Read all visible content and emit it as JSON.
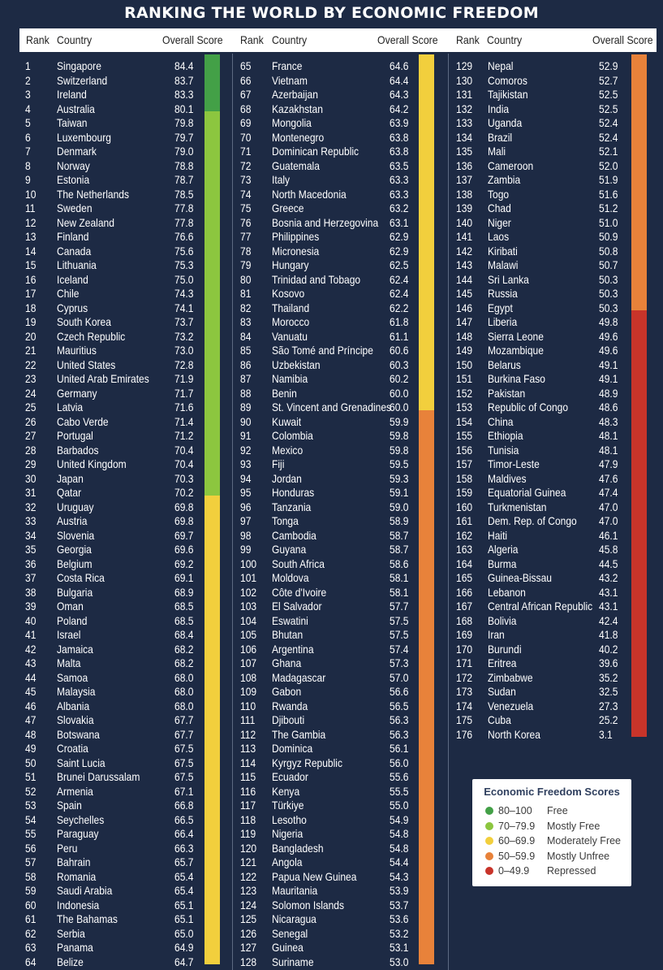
{
  "title": "RANKING THE WORLD BY ECONOMIC FREEDOM",
  "header": {
    "rank": "Rank",
    "country": "Country",
    "score": "Overall Score"
  },
  "colors": {
    "free": "#43a047",
    "mostly_free": "#8cc63f",
    "moderately_free": "#f2cf3d",
    "mostly_unfree": "#e8823a",
    "repressed": "#c8342a"
  },
  "legend": {
    "title": "Economic Freedom Scores",
    "items": [
      {
        "range": "80–100",
        "label": "Free",
        "color": "#43a047"
      },
      {
        "range": "70–79.9",
        "label": "Mostly Free",
        "color": "#8cc63f"
      },
      {
        "range": "60–69.9",
        "label": "Moderately Free",
        "color": "#f2cf3d"
      },
      {
        "range": "50–59.9",
        "label": "Mostly Unfree",
        "color": "#e8823a"
      },
      {
        "range": "0–49.9",
        "label": "Repressed",
        "color": "#c8342a"
      }
    ]
  },
  "chart_data": {
    "type": "table",
    "columns": [
      "Rank",
      "Country",
      "Overall Score"
    ],
    "rows": [
      [
        1,
        "Singapore",
        84.4
      ],
      [
        2,
        "Switzerland",
        83.7
      ],
      [
        3,
        "Ireland",
        83.3
      ],
      [
        4,
        "Australia",
        80.1
      ],
      [
        5,
        "Taiwan",
        79.8
      ],
      [
        6,
        "Luxembourg",
        79.7
      ],
      [
        7,
        "Denmark",
        79.0
      ],
      [
        8,
        "Norway",
        78.8
      ],
      [
        9,
        "Estonia",
        78.7
      ],
      [
        10,
        "The Netherlands",
        78.5
      ],
      [
        11,
        "Sweden",
        77.8
      ],
      [
        12,
        "New Zealand",
        77.8
      ],
      [
        13,
        "Finland",
        76.6
      ],
      [
        14,
        "Canada",
        75.6
      ],
      [
        15,
        "Lithuania",
        75.3
      ],
      [
        16,
        "Iceland",
        75.0
      ],
      [
        17,
        "Chile",
        74.3
      ],
      [
        18,
        "Cyprus",
        74.1
      ],
      [
        19,
        "South Korea",
        73.7
      ],
      [
        20,
        "Czech Republic",
        73.2
      ],
      [
        21,
        "Mauritius",
        73.0
      ],
      [
        22,
        "United States",
        72.8
      ],
      [
        23,
        "United Arab Emirates",
        71.9
      ],
      [
        24,
        "Germany",
        71.7
      ],
      [
        25,
        "Latvia",
        71.6
      ],
      [
        26,
        "Cabo Verde",
        71.4
      ],
      [
        27,
        "Portugal",
        71.2
      ],
      [
        28,
        "Barbados",
        70.4
      ],
      [
        29,
        "United Kingdom",
        70.4
      ],
      [
        30,
        "Japan",
        70.3
      ],
      [
        31,
        "Qatar",
        70.2
      ],
      [
        32,
        "Uruguay",
        69.8
      ],
      [
        33,
        "Austria",
        69.8
      ],
      [
        34,
        "Slovenia",
        69.7
      ],
      [
        35,
        "Georgia",
        69.6
      ],
      [
        36,
        "Belgium",
        69.2
      ],
      [
        37,
        "Costa Rica",
        69.1
      ],
      [
        38,
        "Bulgaria",
        68.9
      ],
      [
        39,
        "Oman",
        68.5
      ],
      [
        40,
        "Poland",
        68.5
      ],
      [
        41,
        "Israel",
        68.4
      ],
      [
        42,
        "Jamaica",
        68.2
      ],
      [
        43,
        "Malta",
        68.2
      ],
      [
        44,
        "Samoa",
        68.0
      ],
      [
        45,
        "Malaysia",
        68.0
      ],
      [
        46,
        "Albania",
        68.0
      ],
      [
        47,
        "Slovakia",
        67.7
      ],
      [
        48,
        "Botswana",
        67.7
      ],
      [
        49,
        "Croatia",
        67.5
      ],
      [
        50,
        "Saint Lucia",
        67.5
      ],
      [
        51,
        "Brunei Darussalam",
        67.5
      ],
      [
        52,
        "Armenia",
        67.1
      ],
      [
        53,
        "Spain",
        66.8
      ],
      [
        54,
        "Seychelles",
        66.5
      ],
      [
        55,
        "Paraguay",
        66.4
      ],
      [
        56,
        "Peru",
        66.3
      ],
      [
        57,
        "Bahrain",
        65.7
      ],
      [
        58,
        "Romania",
        65.4
      ],
      [
        59,
        "Saudi Arabia",
        65.4
      ],
      [
        60,
        "Indonesia",
        65.1
      ],
      [
        61,
        "The Bahamas",
        65.1
      ],
      [
        62,
        "Serbia",
        65.0
      ],
      [
        63,
        "Panama",
        64.9
      ],
      [
        64,
        "Belize",
        64.7
      ],
      [
        65,
        "France",
        64.6
      ],
      [
        66,
        "Vietnam",
        64.4
      ],
      [
        67,
        "Azerbaijan",
        64.3
      ],
      [
        68,
        "Kazakhstan",
        64.2
      ],
      [
        69,
        "Mongolia",
        63.9
      ],
      [
        70,
        "Montenegro",
        63.8
      ],
      [
        71,
        "Dominican Republic",
        63.8
      ],
      [
        72,
        "Guatemala",
        63.5
      ],
      [
        73,
        "Italy",
        63.3
      ],
      [
        74,
        "North Macedonia",
        63.3
      ],
      [
        75,
        "Greece",
        63.2
      ],
      [
        76,
        "Bosnia and Herzegovina",
        63.1
      ],
      [
        77,
        "Philippines",
        62.9
      ],
      [
        78,
        "Micronesia",
        62.9
      ],
      [
        79,
        "Hungary",
        62.5
      ],
      [
        80,
        "Trinidad and Tobago",
        62.4
      ],
      [
        81,
        "Kosovo",
        62.4
      ],
      [
        82,
        "Thailand",
        62.2
      ],
      [
        83,
        "Morocco",
        61.8
      ],
      [
        84,
        "Vanuatu",
        61.1
      ],
      [
        85,
        "São Tomé and Príncipe",
        60.6
      ],
      [
        86,
        "Uzbekistan",
        60.3
      ],
      [
        87,
        "Namibia",
        60.2
      ],
      [
        88,
        "Benin",
        60.0
      ],
      [
        89,
        "St. Vincent and Grenadines",
        60.0
      ],
      [
        90,
        "Kuwait",
        59.9
      ],
      [
        91,
        "Colombia",
        59.8
      ],
      [
        92,
        "Mexico",
        59.8
      ],
      [
        93,
        "Fiji",
        59.5
      ],
      [
        94,
        "Jordan",
        59.3
      ],
      [
        95,
        "Honduras",
        59.1
      ],
      [
        96,
        "Tanzania",
        59.0
      ],
      [
        97,
        "Tonga",
        58.9
      ],
      [
        98,
        "Cambodia",
        58.7
      ],
      [
        99,
        "Guyana",
        58.7
      ],
      [
        100,
        "South Africa",
        58.6
      ],
      [
        101,
        "Moldova",
        58.1
      ],
      [
        102,
        "Côte d'Ivoire",
        58.1
      ],
      [
        103,
        "El Salvador",
        57.7
      ],
      [
        104,
        "Eswatini",
        57.5
      ],
      [
        105,
        "Bhutan",
        57.5
      ],
      [
        106,
        "Argentina",
        57.4
      ],
      [
        107,
        "Ghana",
        57.3
      ],
      [
        108,
        "Madagascar",
        57.0
      ],
      [
        109,
        "Gabon",
        56.6
      ],
      [
        110,
        "Rwanda",
        56.5
      ],
      [
        111,
        "Djibouti",
        56.3
      ],
      [
        112,
        "The Gambia",
        56.3
      ],
      [
        113,
        "Dominica",
        56.1
      ],
      [
        114,
        "Kyrgyz Republic",
        56.0
      ],
      [
        115,
        "Ecuador",
        55.6
      ],
      [
        116,
        "Kenya",
        55.5
      ],
      [
        117,
        "Türkiye",
        55.0
      ],
      [
        118,
        "Lesotho",
        54.9
      ],
      [
        119,
        "Nigeria",
        54.8
      ],
      [
        120,
        "Bangladesh",
        54.8
      ],
      [
        121,
        "Angola",
        54.4
      ],
      [
        122,
        "Papua New Guinea",
        54.3
      ],
      [
        123,
        "Mauritania",
        53.9
      ],
      [
        124,
        "Solomon Islands",
        53.7
      ],
      [
        125,
        "Nicaragua",
        53.6
      ],
      [
        126,
        "Senegal",
        53.2
      ],
      [
        127,
        "Guinea",
        53.1
      ],
      [
        128,
        "Suriname",
        53.0
      ],
      [
        129,
        "Nepal",
        52.9
      ],
      [
        130,
        "Comoros",
        52.7
      ],
      [
        131,
        "Tajikistan",
        52.5
      ],
      [
        132,
        "India",
        52.5
      ],
      [
        133,
        "Uganda",
        52.4
      ],
      [
        134,
        "Brazil",
        52.4
      ],
      [
        135,
        "Mali",
        52.1
      ],
      [
        136,
        "Cameroon",
        52.0
      ],
      [
        137,
        "Zambia",
        51.9
      ],
      [
        138,
        "Togo",
        51.6
      ],
      [
        139,
        "Chad",
        51.2
      ],
      [
        140,
        "Niger",
        51.0
      ],
      [
        141,
        "Laos",
        50.9
      ],
      [
        142,
        "Kiribati",
        50.8
      ],
      [
        143,
        "Malawi",
        50.7
      ],
      [
        144,
        "Sri Lanka",
        50.3
      ],
      [
        145,
        "Russia",
        50.3
      ],
      [
        146,
        "Egypt",
        50.3
      ],
      [
        147,
        "Liberia",
        49.8
      ],
      [
        148,
        "Sierra Leone",
        49.6
      ],
      [
        149,
        "Mozambique",
        49.6
      ],
      [
        150,
        "Belarus",
        49.1
      ],
      [
        151,
        "Burkina Faso",
        49.1
      ],
      [
        152,
        "Pakistan",
        48.9
      ],
      [
        153,
        "Republic of Congo",
        48.6
      ],
      [
        154,
        "China",
        48.3
      ],
      [
        155,
        "Ethiopia",
        48.1
      ],
      [
        156,
        "Tunisia",
        48.1
      ],
      [
        157,
        "Timor-Leste",
        47.9
      ],
      [
        158,
        "Maldives",
        47.6
      ],
      [
        159,
        "Equatorial Guinea",
        47.4
      ],
      [
        160,
        "Turkmenistan",
        47.0
      ],
      [
        161,
        "Dem. Rep. of Congo",
        47.0
      ],
      [
        162,
        "Haiti",
        46.1
      ],
      [
        163,
        "Algeria",
        45.8
      ],
      [
        164,
        "Burma",
        44.5
      ],
      [
        165,
        "Guinea-Bissau",
        43.2
      ],
      [
        166,
        "Lebanon",
        43.1
      ],
      [
        167,
        "Central African Republic",
        43.1
      ],
      [
        168,
        "Bolivia",
        42.4
      ],
      [
        169,
        "Iran",
        41.8
      ],
      [
        170,
        "Burundi",
        40.2
      ],
      [
        171,
        "Eritrea",
        39.6
      ],
      [
        172,
        "Zimbabwe",
        35.2
      ],
      [
        173,
        "Sudan",
        32.5
      ],
      [
        174,
        "Venezuela",
        27.3
      ],
      [
        175,
        "Cuba",
        25.2
      ],
      [
        176,
        "North Korea",
        3.1
      ]
    ]
  }
}
